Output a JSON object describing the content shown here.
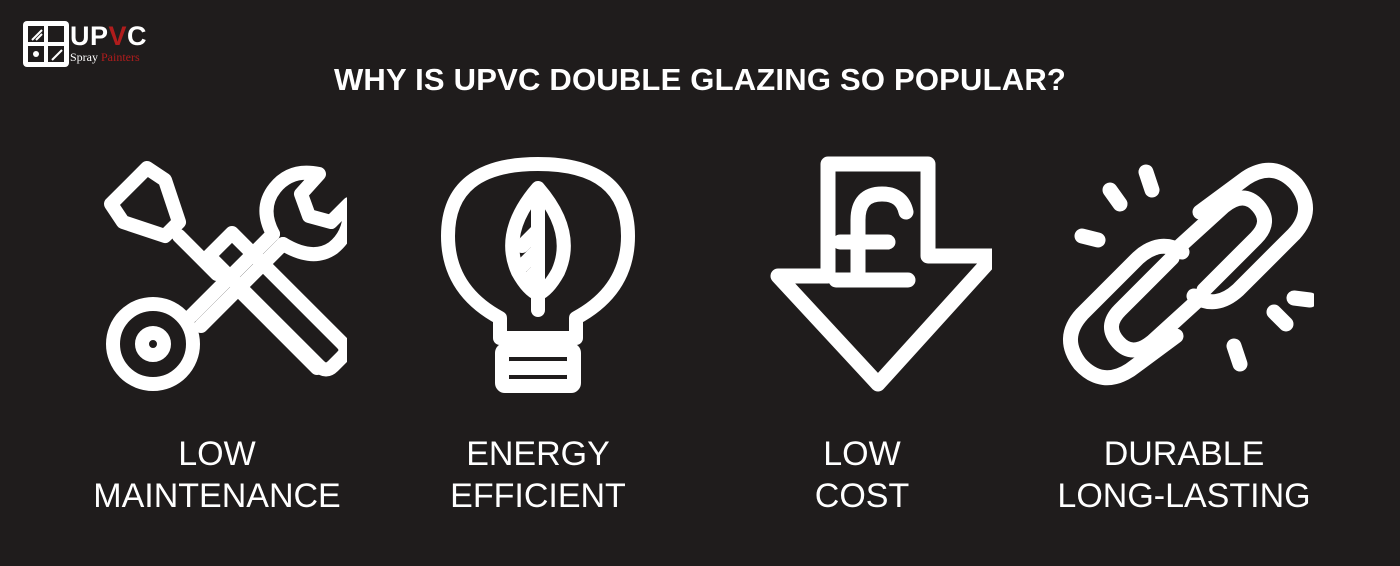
{
  "brand": {
    "wordmark_a": "UP",
    "wordmark_b": "V",
    "wordmark_c": "C",
    "tagline_a": "Spray ",
    "tagline_b": "Painters",
    "accent_color": "#b01c1c"
  },
  "title": "WHY IS UPVC DOUBLE GLAZING SO POPULAR?",
  "features": [
    {
      "icon": "tools-icon",
      "line1": "LOW",
      "line2": "MAINTENANCE"
    },
    {
      "icon": "lightbulb-leaf-icon",
      "line1": "ENERGY",
      "line2": "EFFICIENT"
    },
    {
      "icon": "pound-down-arrow-icon",
      "line1": "LOW",
      "line2": "COST"
    },
    {
      "icon": "chain-link-icon",
      "line1": "DURABLE",
      "line2": "LONG-LASTING"
    }
  ],
  "colors": {
    "background": "#1f1c1c",
    "foreground": "#ffffff"
  }
}
